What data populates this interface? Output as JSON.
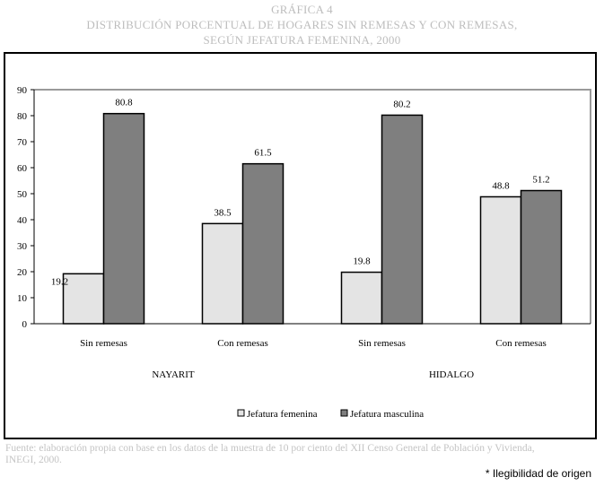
{
  "chart_data": {
    "type": "bar",
    "title_lines": [
      "GRÁFICA 4",
      "DISTRIBUCIÓN PORCENTUAL DE HOGARES SIN REMESAS Y CON REMESAS,",
      "SEGÚN JEFATURA FEMENINA, 2000"
    ],
    "categories": [
      "Sin remesas",
      "Con remesas",
      "Sin remesas",
      "Con remesas"
    ],
    "groups": [
      "NAYARIT",
      "HIDALGO"
    ],
    "series": [
      {
        "name": "Jefatura femenina",
        "values": [
          19.2,
          38.5,
          19.8,
          48.8
        ],
        "color": "#e4e4e4"
      },
      {
        "name": "Jefatura masculina",
        "values": [
          80.8,
          61.5,
          80.2,
          51.2
        ],
        "color": "#7f7f7f"
      }
    ],
    "ylim": [
      0,
      90
    ],
    "yticks": [
      0,
      10,
      20,
      30,
      40,
      50,
      60,
      70,
      80,
      90
    ],
    "grid": false,
    "legend_position": "bottom",
    "value_labels": [
      "19.2",
      "80.8",
      "38.5",
      "61.5",
      "19.8",
      "80.2",
      "48.8",
      "51.2"
    ]
  },
  "footer": {
    "source_line1": "Fuente: elaboración propia con base en los datos de la muestra de 10 por ciento del XII Censo General de Población y Vivienda,",
    "source_line2": "INEGI, 2000."
  },
  "note": "* Ilegibilidad de origen"
}
